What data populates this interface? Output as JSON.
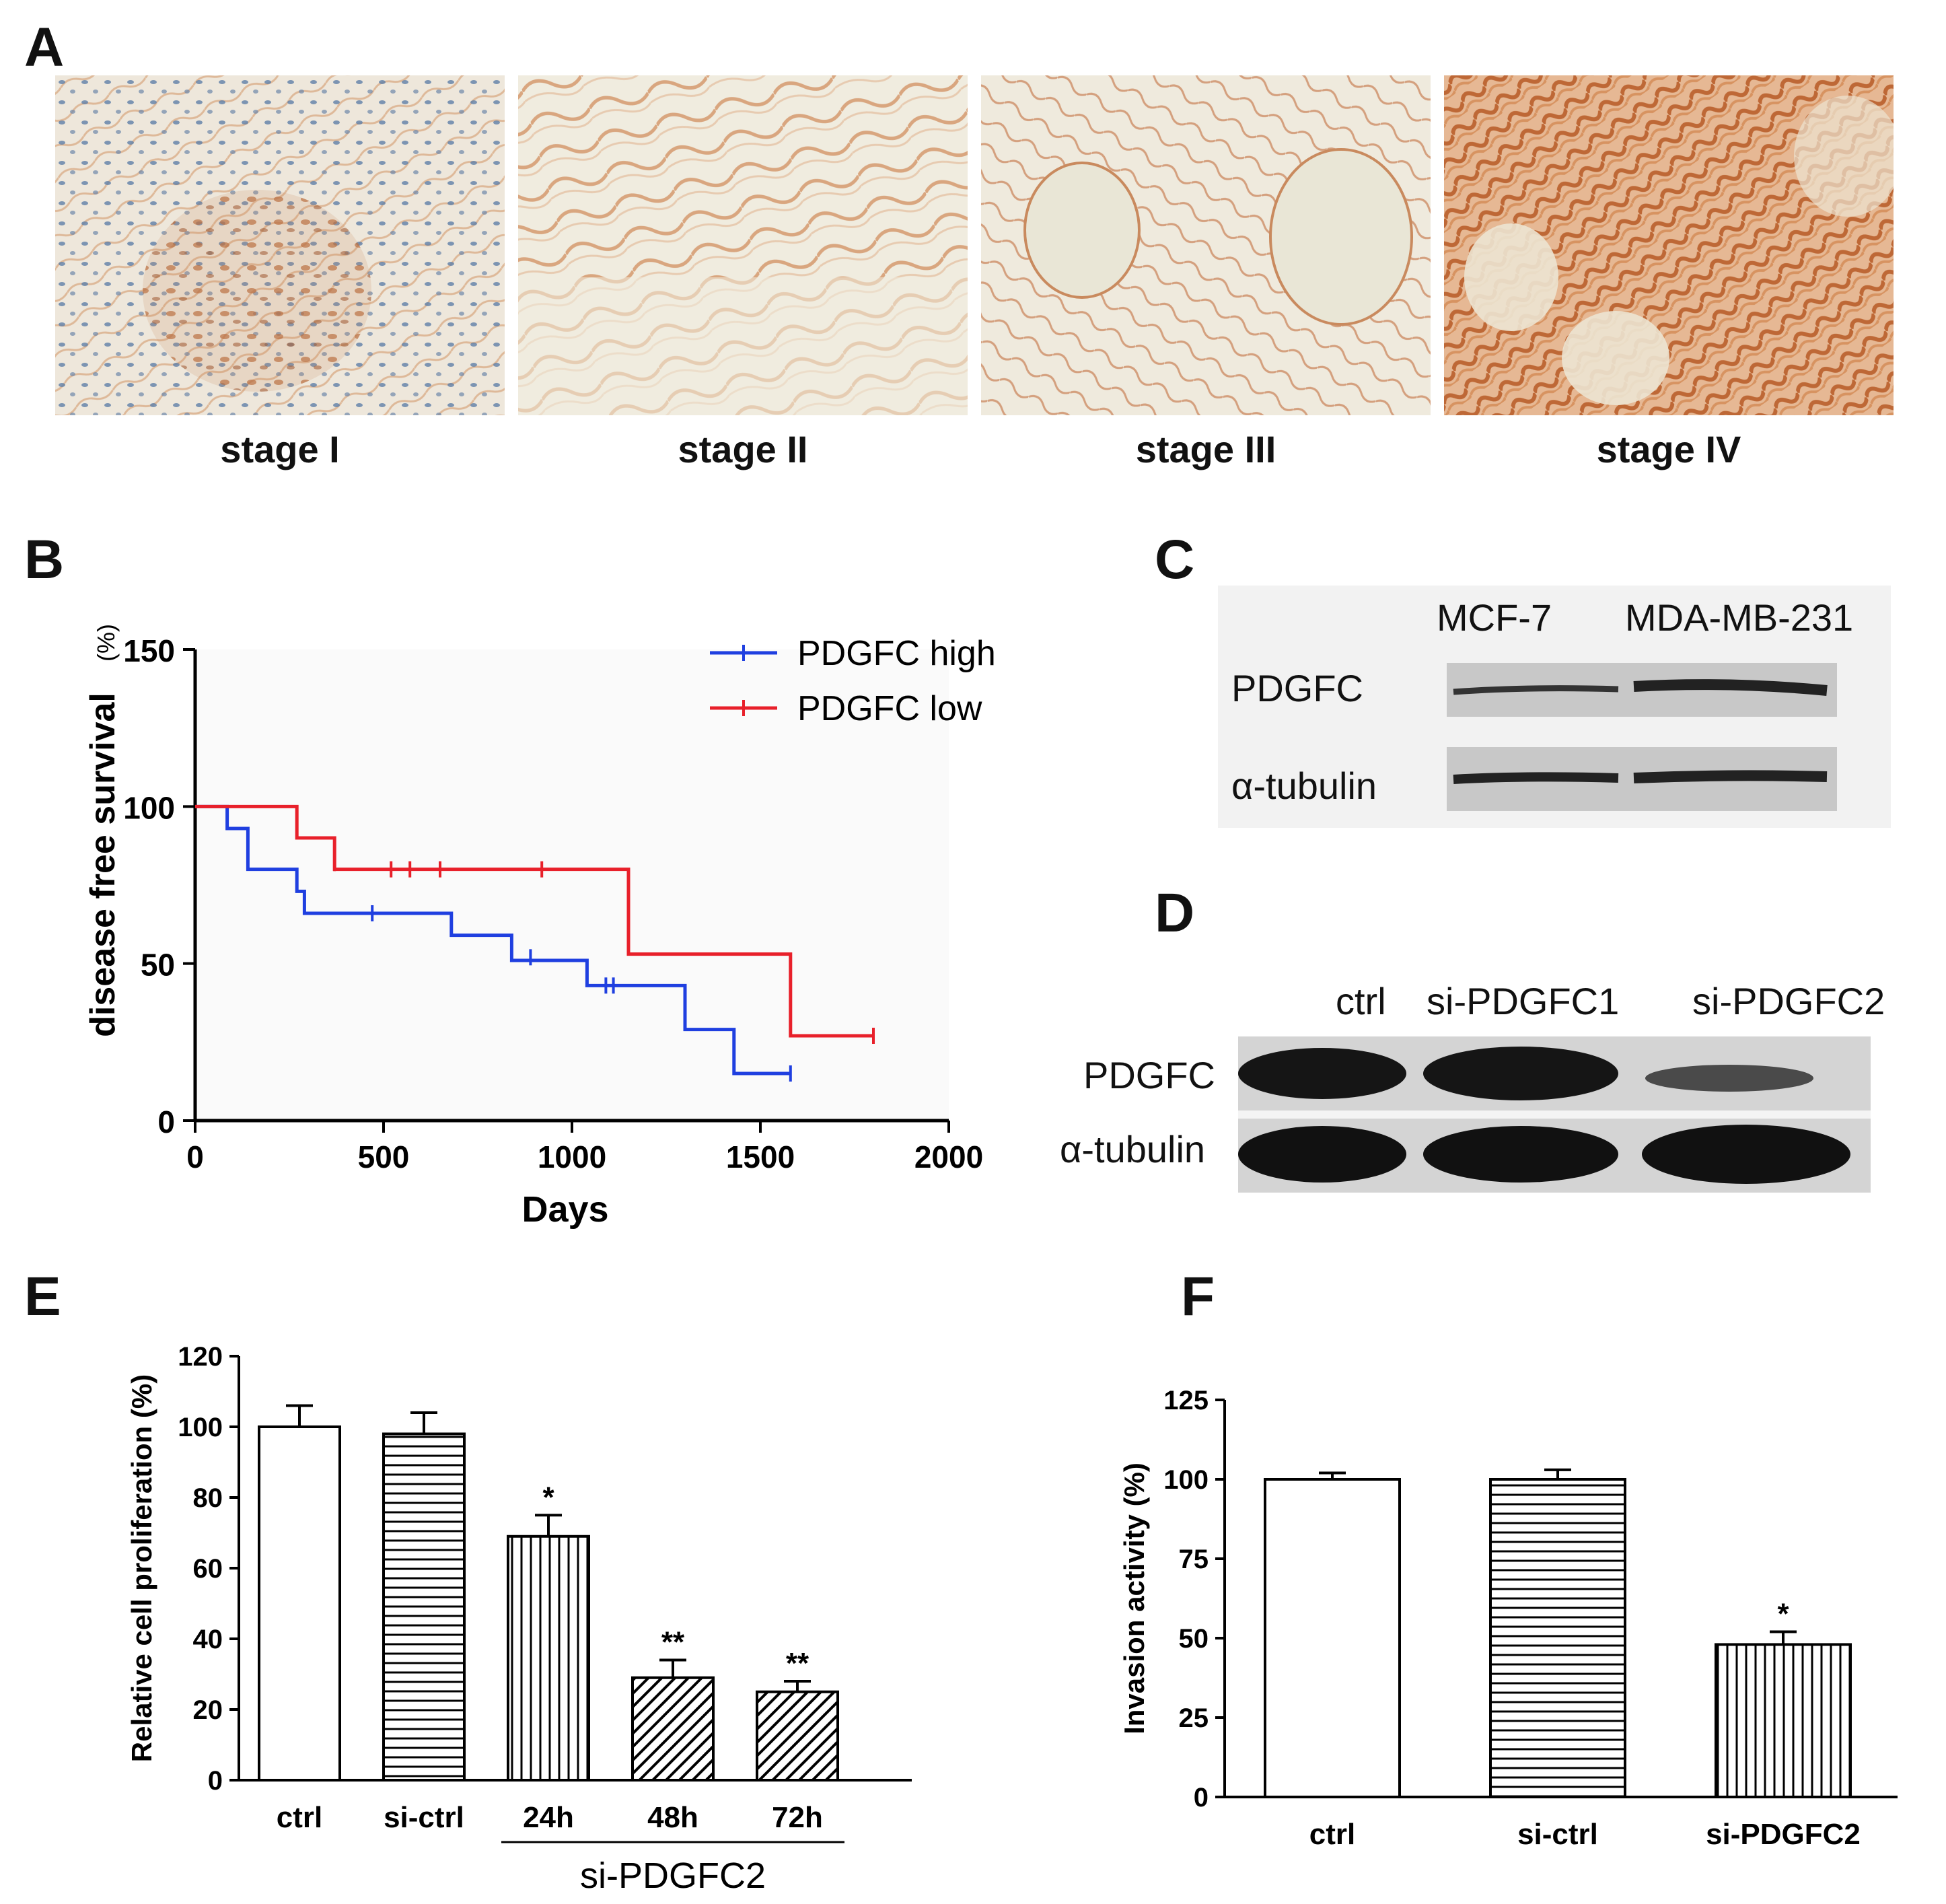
{
  "panels": {
    "A": "A",
    "B": "B",
    "C": "C",
    "D": "D",
    "E": "E",
    "F": "F"
  },
  "panel_a": {
    "captions": [
      "stage I",
      "stage II",
      "stage III",
      "stage IV"
    ]
  },
  "panel_c": {
    "columns": [
      "MCF-7",
      "MDA-MB-231"
    ],
    "rows": [
      "PDGFC",
      "α-tubulin"
    ]
  },
  "panel_d": {
    "columns": [
      "ctrl",
      "si-PDGFC1",
      "si-PDGFC2"
    ],
    "rows": [
      "PDGFC",
      "α-tubulin"
    ]
  },
  "colors": {
    "high": "#1f3fe0",
    "low": "#e8202a",
    "ihc_brown": "#c0703a",
    "ihc_blue": "#4a6f9a"
  },
  "chart_data": [
    {
      "id": "B",
      "type": "line",
      "step": true,
      "xlabel": "Days",
      "ylabel": "disease free survival",
      "ylabel_unit": "(%)",
      "xlim": [
        0,
        2000
      ],
      "ylim": [
        0,
        150
      ],
      "xticks": [
        0,
        500,
        1000,
        1500,
        2000
      ],
      "yticks": [
        0,
        50,
        100,
        150
      ],
      "legend_position": "top-right",
      "series": [
        {
          "name": "PDGFC high",
          "color": "#1f3fe0",
          "steps": [
            [
              0,
              100
            ],
            [
              85,
              93
            ],
            [
              140,
              80
            ],
            [
              270,
              73
            ],
            [
              290,
              66
            ],
            [
              680,
              59
            ],
            [
              840,
              51
            ],
            [
              1040,
              43
            ],
            [
              1300,
              29
            ],
            [
              1430,
              15
            ],
            [
              1580,
              15
            ]
          ],
          "censors": [
            [
              85,
              97
            ],
            [
              140,
              84
            ],
            [
              270,
              76
            ],
            [
              470,
              66
            ],
            [
              890,
              52
            ],
            [
              1090,
              43
            ],
            [
              1110,
              43
            ],
            [
              1580,
              15
            ]
          ]
        },
        {
          "name": "PDGFC low",
          "color": "#e8202a",
          "steps": [
            [
              0,
              100
            ],
            [
              270,
              90
            ],
            [
              370,
              80
            ],
            [
              1150,
              53
            ],
            [
              1580,
              27
            ],
            [
              1800,
              27
            ]
          ],
          "censors": [
            [
              370,
              82
            ],
            [
              520,
              80
            ],
            [
              570,
              80
            ],
            [
              650,
              80
            ],
            [
              920,
              80
            ],
            [
              1800,
              27
            ]
          ]
        }
      ]
    },
    {
      "id": "E",
      "type": "bar",
      "ylabel": "Relative cell proliferation (%)",
      "ylim": [
        0,
        120
      ],
      "yticks": [
        0,
        20,
        40,
        60,
        80,
        100,
        120
      ],
      "categories": [
        "ctrl",
        "si-ctrl",
        "24h",
        "48h",
        "72h"
      ],
      "values": [
        100,
        98,
        69,
        29,
        25
      ],
      "errors": [
        6,
        6,
        6,
        5,
        3
      ],
      "patterns": [
        "none",
        "horizontal",
        "vertical",
        "diagonal",
        "diagonal"
      ],
      "significance": [
        "",
        "",
        "*",
        "**",
        "**"
      ],
      "group_label": "si-PDGFC2"
    },
    {
      "id": "F",
      "type": "bar",
      "ylabel": "Invasion activity (%)",
      "ylim": [
        0,
        125
      ],
      "yticks": [
        0,
        25,
        50,
        75,
        100,
        125
      ],
      "categories": [
        "ctrl",
        "si-ctrl",
        "si-PDGFC2"
      ],
      "values": [
        100,
        100,
        48
      ],
      "errors": [
        2,
        3,
        4
      ],
      "patterns": [
        "none",
        "horizontal",
        "vertical"
      ],
      "significance": [
        "",
        "",
        "*"
      ]
    }
  ]
}
